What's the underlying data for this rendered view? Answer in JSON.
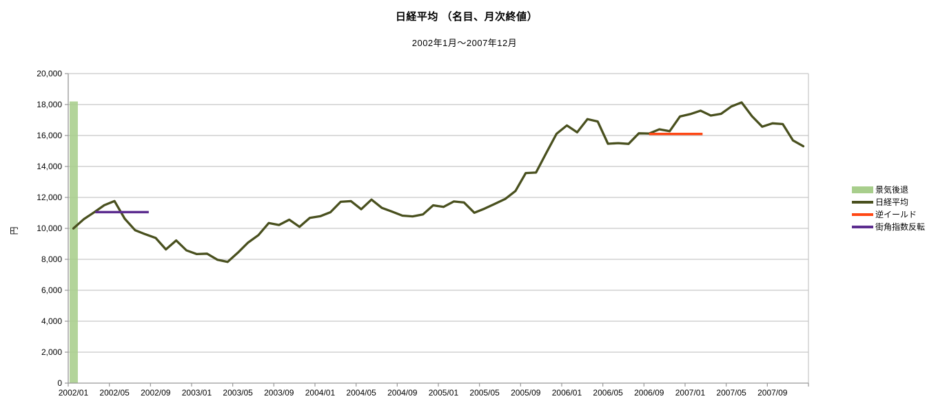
{
  "header": {
    "title": "日経平均 （名目、月次終値）",
    "subtitle": "2002年1月～2007年12月"
  },
  "y_axis": {
    "title": "円",
    "min": 0,
    "max": 20000,
    "step": 2000,
    "tick_labels": [
      "0",
      "2,000",
      "4,000",
      "6,000",
      "8,000",
      "10,000",
      "12,000",
      "14,000",
      "16,000",
      "18,000",
      "20,000"
    ]
  },
  "x_axis": {
    "label_interval": 4,
    "tick_labels": [
      "2002/01",
      "2002/05",
      "2002/09",
      "2003/01",
      "2003/05",
      "2003/09",
      "2004/01",
      "2004/05",
      "2004/09",
      "2005/01",
      "2005/05",
      "2005/09",
      "2006/01",
      "2006/05",
      "2006/09",
      "2007/01",
      "2007/05",
      "2007/09"
    ]
  },
  "legend": {
    "items": [
      {
        "label": "景気後退",
        "color": "#A8CE8C",
        "swatch": "rect"
      },
      {
        "label": "日経平均",
        "color": "#49501E",
        "swatch": "line"
      },
      {
        "label": "逆イールド",
        "color": "#FF4714",
        "swatch": "line"
      },
      {
        "label": "街角指数反転",
        "color": "#5C2D8F",
        "swatch": "line"
      }
    ]
  },
  "colors": {
    "grid": "#C6C6C6",
    "axis": "#969696",
    "background": "#FFFFFF"
  },
  "chart_data": {
    "type": "line",
    "title": "日経平均 （名目、月次終値）",
    "subtitle": "2002年1月～2007年12月",
    "ylabel": "円",
    "ylim": [
      0,
      20000
    ],
    "grid": true,
    "legend_position": "right",
    "x": [
      "2002/01",
      "2002/02",
      "2002/03",
      "2002/04",
      "2002/05",
      "2002/06",
      "2002/07",
      "2002/08",
      "2002/09",
      "2002/10",
      "2002/11",
      "2002/12",
      "2003/01",
      "2003/02",
      "2003/03",
      "2003/04",
      "2003/05",
      "2003/06",
      "2003/07",
      "2003/08",
      "2003/09",
      "2003/10",
      "2003/11",
      "2003/12",
      "2004/01",
      "2004/02",
      "2004/03",
      "2004/04",
      "2004/05",
      "2004/06",
      "2004/07",
      "2004/08",
      "2004/09",
      "2004/10",
      "2004/11",
      "2004/12",
      "2005/01",
      "2005/02",
      "2005/03",
      "2005/04",
      "2005/05",
      "2005/06",
      "2005/07",
      "2005/08",
      "2005/09",
      "2005/10",
      "2005/11",
      "2005/12",
      "2006/01",
      "2006/02",
      "2006/03",
      "2006/04",
      "2006/05",
      "2006/06",
      "2006/07",
      "2006/08",
      "2006/09",
      "2006/10",
      "2006/11",
      "2006/12",
      "2007/01",
      "2007/02",
      "2007/03",
      "2007/04",
      "2007/05",
      "2007/06",
      "2007/07",
      "2007/08",
      "2007/09",
      "2007/10",
      "2007/11",
      "2007/12"
    ],
    "series": [
      {
        "name": "日経平均",
        "color": "#49501E",
        "values": [
          9997,
          10588,
          11025,
          11492,
          11764,
          10622,
          9878,
          9619,
          9383,
          8640,
          9216,
          8579,
          8339,
          8363,
          7973,
          7831,
          8425,
          9083,
          9563,
          10343,
          10219,
          10559,
          10100,
          10677,
          10784,
          11042,
          11715,
          11762,
          11236,
          11859,
          11326,
          11082,
          10824,
          10772,
          10899,
          11489,
          11387,
          11740,
          11669,
          11009,
          11277,
          11584,
          11900,
          12414,
          13574,
          13606,
          14872,
          16111,
          16649,
          16205,
          17060,
          16906,
          15467,
          15505,
          15457,
          16141,
          16128,
          16399,
          16274,
          17226,
          17383,
          17604,
          17288,
          17400,
          17876,
          18138,
          17249,
          16569,
          16786,
          16738,
          15681,
          15308
        ]
      }
    ],
    "annotations": {
      "recession_bar": {
        "name": "景気後退",
        "month": "2002/01",
        "top_value": 18200,
        "color": "#A8CE8C"
      },
      "inverted_yield": {
        "name": "逆イールド",
        "from": "2006/09",
        "to": "2007/02",
        "value": 16100,
        "color": "#FF4714"
      },
      "street_index_reversal": {
        "name": "街角指数反転",
        "from": "2002/03",
        "to": "2002/08",
        "value": 11050,
        "color": "#5C2D8F"
      }
    }
  }
}
